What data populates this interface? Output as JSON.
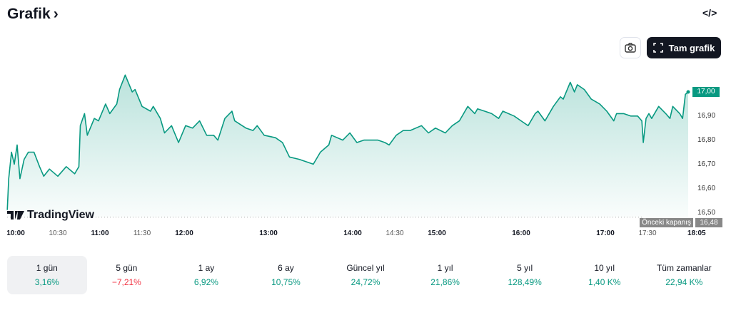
{
  "header": {
    "title": "Grafik",
    "embed_icon": "code-icon"
  },
  "toolbar": {
    "full_chart_label": "Tam grafik"
  },
  "chart_data": {
    "type": "area",
    "symbol_logo": "TradingView",
    "current_price": "17,00",
    "previous_close_label": "Önceki kapanış",
    "previous_close": "16,48",
    "previous_close_value": 16.48,
    "ylim": [
      16.48,
      17.09
    ],
    "y_ticks": [
      "16,90",
      "16,80",
      "16,70",
      "16,60",
      "16,50"
    ],
    "x_ticks": [
      {
        "label": "10:00",
        "t": 0,
        "major": true
      },
      {
        "label": "10:30",
        "t": 30,
        "major": false
      },
      {
        "label": "11:00",
        "t": 60,
        "major": true
      },
      {
        "label": "11:30",
        "t": 90,
        "major": false
      },
      {
        "label": "12:00",
        "t": 120,
        "major": true
      },
      {
        "label": "13:00",
        "t": 180,
        "major": true
      },
      {
        "label": "14:00",
        "t": 240,
        "major": true
      },
      {
        "label": "14:30",
        "t": 270,
        "major": false
      },
      {
        "label": "15:00",
        "t": 300,
        "major": true
      },
      {
        "label": "16:00",
        "t": 360,
        "major": true
      },
      {
        "label": "17:00",
        "t": 420,
        "major": true
      },
      {
        "label": "17:30",
        "t": 450,
        "major": false
      },
      {
        "label": "18:05",
        "t": 485,
        "major": true
      }
    ],
    "line_color": "#089981",
    "series_minutes_from_10": [
      -6,
      -5,
      -3,
      -1,
      1,
      3,
      6,
      9,
      13,
      17,
      20,
      24,
      30,
      36,
      42,
      45,
      46,
      49,
      51,
      56,
      59,
      64,
      67,
      72,
      74,
      78,
      83,
      85,
      90,
      96,
      98,
      103,
      106,
      111,
      116,
      121,
      126,
      131,
      136,
      141,
      144,
      149,
      154,
      156,
      164,
      169,
      172,
      177,
      185,
      190,
      195,
      202,
      207,
      212,
      217,
      223,
      225,
      233,
      238,
      243,
      248,
      253,
      258,
      263,
      266,
      271,
      276,
      281,
      289,
      294,
      299,
      306,
      311,
      316,
      322,
      327,
      329,
      334,
      339,
      344,
      347,
      355,
      360,
      365,
      370,
      372,
      377,
      383,
      388,
      390,
      395,
      398,
      400,
      405,
      410,
      416,
      421,
      426,
      428,
      433,
      438,
      443,
      446,
      447,
      449,
      451,
      453,
      458,
      463,
      466,
      468,
      473,
      475,
      477,
      479
    ],
    "series_price": [
      16.51,
      16.64,
      16.75,
      16.7,
      16.78,
      16.64,
      16.72,
      16.75,
      16.75,
      16.69,
      16.65,
      16.68,
      16.65,
      16.69,
      16.66,
      16.69,
      16.86,
      16.91,
      16.82,
      16.89,
      16.88,
      16.95,
      16.91,
      16.95,
      17.01,
      17.07,
      17.0,
      17.01,
      16.94,
      16.92,
      16.94,
      16.89,
      16.83,
      16.86,
      16.79,
      16.86,
      16.85,
      16.88,
      16.82,
      16.82,
      16.8,
      16.89,
      16.92,
      16.88,
      16.85,
      16.84,
      16.86,
      16.82,
      16.81,
      16.79,
      16.73,
      16.72,
      16.71,
      16.7,
      16.75,
      16.78,
      16.82,
      16.8,
      16.83,
      16.79,
      16.8,
      16.8,
      16.8,
      16.79,
      16.78,
      16.82,
      16.84,
      16.84,
      16.86,
      16.83,
      16.85,
      16.83,
      16.86,
      16.88,
      16.94,
      16.91,
      16.93,
      16.92,
      16.91,
      16.89,
      16.92,
      16.9,
      16.88,
      16.86,
      16.91,
      16.92,
      16.88,
      16.94,
      16.98,
      16.97,
      17.04,
      17.0,
      17.03,
      17.01,
      16.97,
      16.95,
      16.92,
      16.88,
      16.91,
      16.91,
      16.9,
      16.9,
      16.88,
      16.79,
      16.89,
      16.91,
      16.89,
      16.94,
      16.91,
      16.89,
      16.94,
      16.91,
      16.89,
      16.99,
      17.0
    ]
  },
  "periods": [
    {
      "label": "1 gün",
      "value": "3,16%",
      "selected": true
    },
    {
      "label": "5 gün",
      "value": "−7,21%",
      "negative": true
    },
    {
      "label": "1 ay",
      "value": "6,92%"
    },
    {
      "label": "6 ay",
      "value": "10,75%"
    },
    {
      "label": "Güncel yıl",
      "value": "24,72%"
    },
    {
      "label": "1 yıl",
      "value": "21,86%"
    },
    {
      "label": "5 yıl",
      "value": "128,49%"
    },
    {
      "label": "10 yıl",
      "value": "1,40 K%"
    },
    {
      "label": "Tüm zamanlar",
      "value": "22,94 K%"
    }
  ]
}
